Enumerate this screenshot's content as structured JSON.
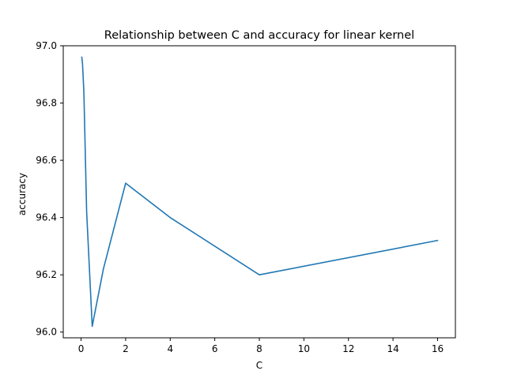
{
  "chart_data": {
    "type": "line",
    "title": "Relationship between C and accuracy for linear kernel",
    "xlabel": "C",
    "ylabel": "accuracy",
    "xlim": [
      -0.8,
      16.8
    ],
    "ylim": [
      95.98,
      97.0
    ],
    "x_ticks": [
      0,
      2,
      4,
      6,
      8,
      10,
      12,
      14,
      16
    ],
    "y_ticks": [
      96.0,
      96.2,
      96.4,
      96.6,
      96.8,
      97.0
    ],
    "y_tick_labels": [
      "96.0",
      "96.2",
      "96.4",
      "96.6",
      "96.8",
      "97.0"
    ],
    "grid": false,
    "series": [
      {
        "color": "#1f77b4",
        "x": [
          0.03125,
          0.0625,
          0.125,
          0.25,
          0.5,
          1,
          2,
          4,
          8,
          16
        ],
        "y": [
          96.96,
          96.94,
          96.84,
          96.42,
          96.02,
          96.22,
          96.52,
          96.4,
          96.2,
          96.32
        ]
      }
    ]
  }
}
